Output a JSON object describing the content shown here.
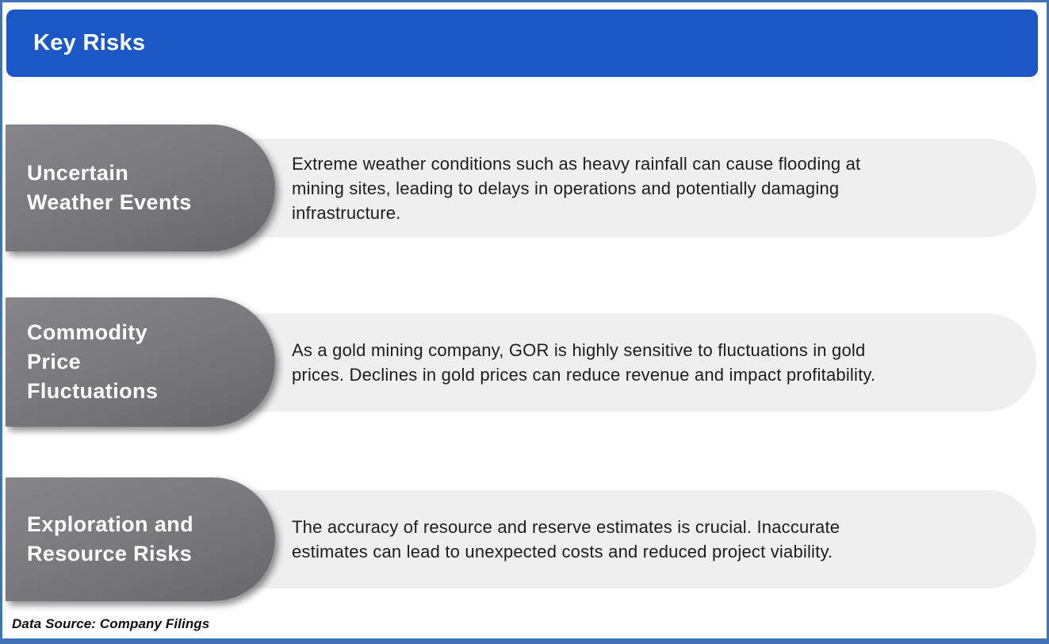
{
  "header": {
    "title": "Key Risks"
  },
  "risks": [
    {
      "label": "Uncertain\nWeather Events",
      "description": "Extreme weather conditions such as heavy rainfall can cause flooding at\nmining sites, leading to delays in operations and potentially damaging\ninfrastructure."
    },
    {
      "label": "Commodity\nPrice\nFluctuations",
      "description": "As a gold mining company, GOR is highly sensitive to fluctuations in gold\nprices. Declines in gold prices can reduce revenue and impact profitability."
    },
    {
      "label": "Exploration and\nResource Risks",
      "description": "The accuracy of resource and reserve estimates is crucial. Inaccurate\nestimates can lead to unexpected costs and reduced project viability."
    }
  ],
  "footer": {
    "source_note": "Data Source: Company Filings"
  },
  "colors": {
    "header_blue": "#1b58c6",
    "frame_border_blue": "#4273b9",
    "pill_gray_top": "#868589",
    "pill_gray_bottom": "#67666a",
    "description_box_gray": "#efeff0",
    "description_text": "#1d1d1f",
    "label_text": "#ffffff"
  }
}
